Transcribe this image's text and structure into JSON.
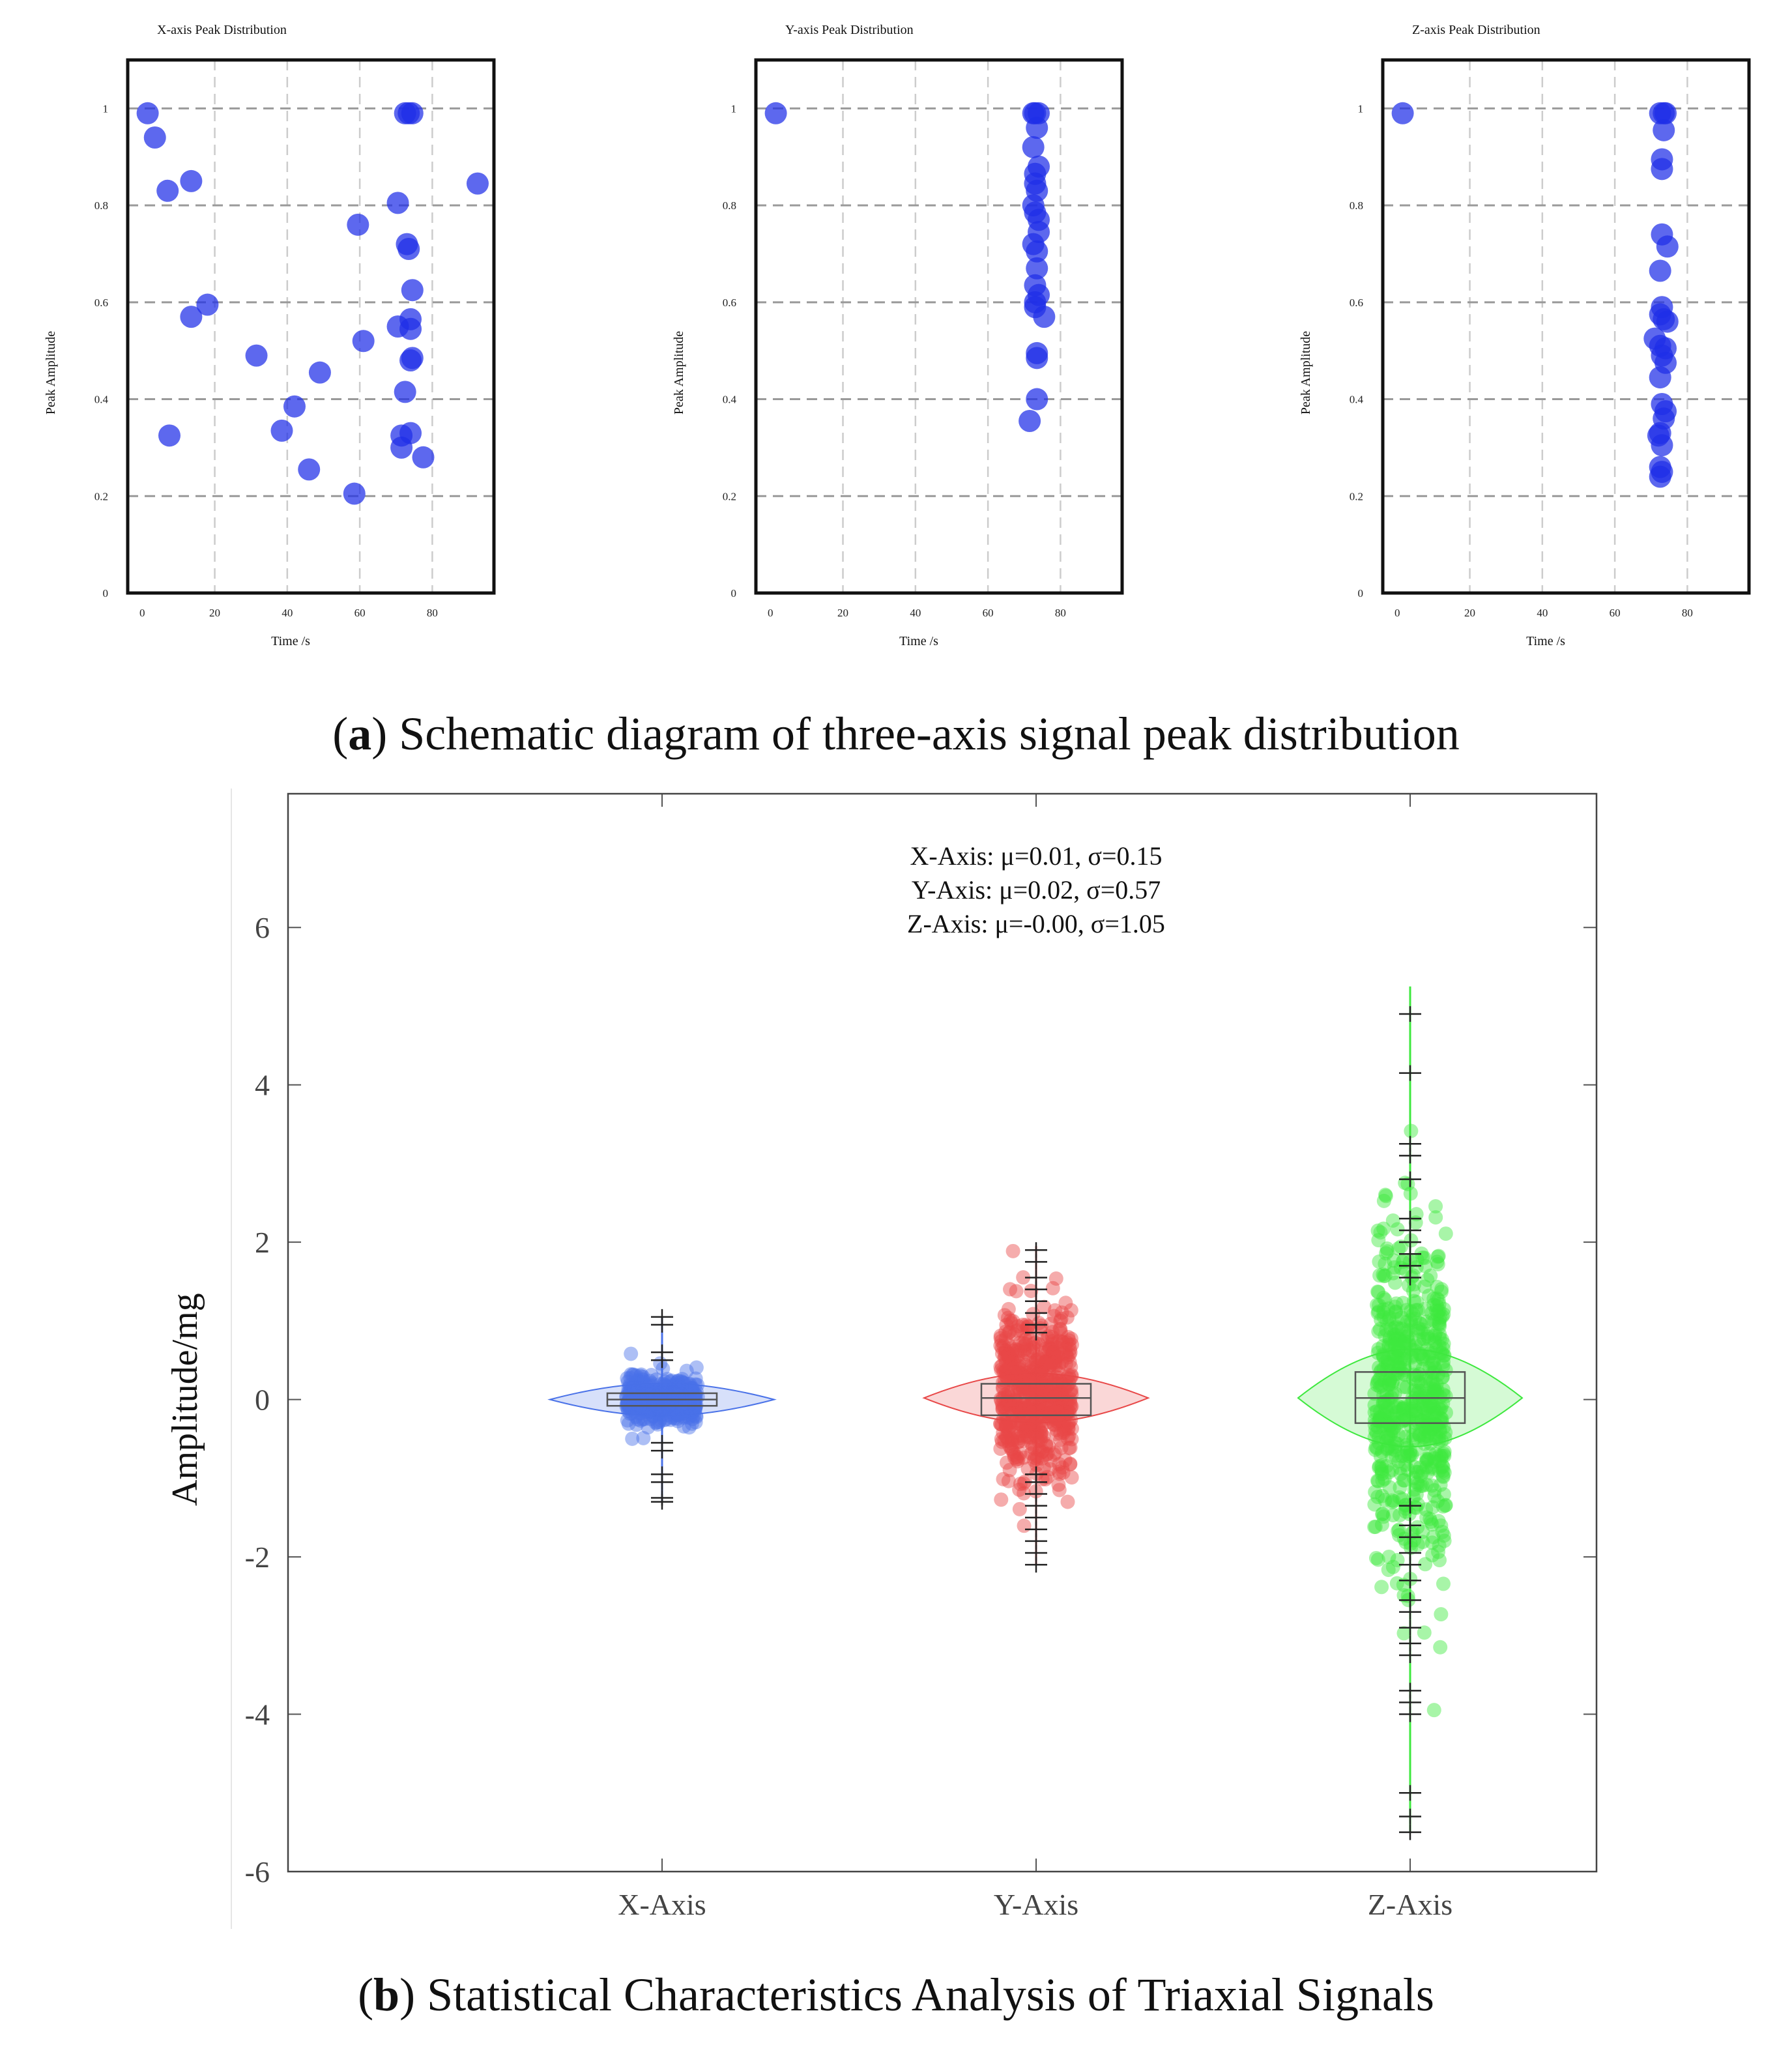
{
  "captions": {
    "a_label": "a",
    "a_text": "Schematic diagram of three-axis signal peak distribution",
    "b_label": "b",
    "b_text": "Statistical Characteristics Analysis of Triaxial Signals"
  },
  "colors": {
    "peak_point": "#1f2ee8",
    "x_axis": "#4a72e8",
    "y_axis": "#e84848",
    "z_axis": "#3ee83e",
    "grid": "#cccccc"
  },
  "chart_data": [
    {
      "type": "scatter",
      "title": "X-axis Peak Distribution",
      "xlabel": "Time /s",
      "ylabel": "Peak Amplitude",
      "xlim": [
        -4,
        97
      ],
      "ylim": [
        0,
        1.1
      ],
      "xticks": [
        0,
        20,
        40,
        60,
        80
      ],
      "yticks": [
        0,
        0.2,
        0.4,
        0.6,
        0.8,
        1
      ],
      "grid": true,
      "points": [
        {
          "x": 1.5,
          "y": 0.99
        },
        {
          "x": 3.5,
          "y": 0.94
        },
        {
          "x": 7.0,
          "y": 0.83
        },
        {
          "x": 13.5,
          "y": 0.85
        },
        {
          "x": 7.5,
          "y": 0.325
        },
        {
          "x": 13.5,
          "y": 0.57
        },
        {
          "x": 18.0,
          "y": 0.595
        },
        {
          "x": 31.5,
          "y": 0.49
        },
        {
          "x": 38.5,
          "y": 0.335
        },
        {
          "x": 42.0,
          "y": 0.385
        },
        {
          "x": 46.0,
          "y": 0.255
        },
        {
          "x": 49.0,
          "y": 0.455
        },
        {
          "x": 58.5,
          "y": 0.205
        },
        {
          "x": 59.5,
          "y": 0.76
        },
        {
          "x": 61.0,
          "y": 0.52
        },
        {
          "x": 70.5,
          "y": 0.805
        },
        {
          "x": 70.5,
          "y": 0.55
        },
        {
          "x": 71.5,
          "y": 0.325
        },
        {
          "x": 71.5,
          "y": 0.3
        },
        {
          "x": 72.5,
          "y": 0.415
        },
        {
          "x": 73.0,
          "y": 0.72
        },
        {
          "x": 73.5,
          "y": 0.71
        },
        {
          "x": 74.0,
          "y": 0.565
        },
        {
          "x": 74.5,
          "y": 0.625
        },
        {
          "x": 74.0,
          "y": 0.545
        },
        {
          "x": 74.5,
          "y": 0.485
        },
        {
          "x": 74.0,
          "y": 0.48
        },
        {
          "x": 74.0,
          "y": 0.33
        },
        {
          "x": 77.5,
          "y": 0.28
        },
        {
          "x": 92.5,
          "y": 0.845
        },
        {
          "x": 72.5,
          "y": 0.99
        },
        {
          "x": 73.5,
          "y": 0.99
        },
        {
          "x": 74.5,
          "y": 0.99
        }
      ]
    },
    {
      "type": "scatter",
      "title": "Y-axis Peak Distribution",
      "xlabel": "Time /s",
      "ylabel": "Peak Amplitude",
      "xlim": [
        -4,
        97
      ],
      "ylim": [
        0,
        1.1
      ],
      "xticks": [
        0,
        20,
        40,
        60,
        80
      ],
      "yticks": [
        0,
        0.2,
        0.4,
        0.6,
        0.8,
        1
      ],
      "grid": true,
      "points": [
        {
          "x": 1.5,
          "y": 0.99
        },
        {
          "x": 73.0,
          "y": 0.99
        },
        {
          "x": 74.0,
          "y": 0.99
        },
        {
          "x": 72.5,
          "y": 0.99
        },
        {
          "x": 73.5,
          "y": 0.96
        },
        {
          "x": 72.5,
          "y": 0.92
        },
        {
          "x": 74.0,
          "y": 0.88
        },
        {
          "x": 73.0,
          "y": 0.865
        },
        {
          "x": 73.0,
          "y": 0.845
        },
        {
          "x": 73.5,
          "y": 0.83
        },
        {
          "x": 72.5,
          "y": 0.8
        },
        {
          "x": 73.0,
          "y": 0.785
        },
        {
          "x": 74.0,
          "y": 0.77
        },
        {
          "x": 74.0,
          "y": 0.745
        },
        {
          "x": 72.5,
          "y": 0.72
        },
        {
          "x": 73.5,
          "y": 0.705
        },
        {
          "x": 73.5,
          "y": 0.67
        },
        {
          "x": 73.0,
          "y": 0.635
        },
        {
          "x": 74.0,
          "y": 0.615
        },
        {
          "x": 73.0,
          "y": 0.6
        },
        {
          "x": 73.0,
          "y": 0.59
        },
        {
          "x": 75.5,
          "y": 0.57
        },
        {
          "x": 73.5,
          "y": 0.495
        },
        {
          "x": 73.5,
          "y": 0.485
        },
        {
          "x": 73.5,
          "y": 0.4
        },
        {
          "x": 71.5,
          "y": 0.355
        }
      ]
    },
    {
      "type": "scatter",
      "title": "Z-axis Peak Distribution",
      "xlabel": "Time /s",
      "ylabel": "Peak Amplitude",
      "xlim": [
        -4,
        97
      ],
      "ylim": [
        0,
        1.1
      ],
      "xticks": [
        0,
        20,
        40,
        60,
        80
      ],
      "yticks": [
        0,
        0.2,
        0.4,
        0.6,
        0.8,
        1
      ],
      "grid": true,
      "points": [
        {
          "x": 1.5,
          "y": 0.99
        },
        {
          "x": 72.5,
          "y": 0.99
        },
        {
          "x": 73.5,
          "y": 0.99
        },
        {
          "x": 74.0,
          "y": 0.99
        },
        {
          "x": 73.5,
          "y": 0.955
        },
        {
          "x": 73.0,
          "y": 0.895
        },
        {
          "x": 73.0,
          "y": 0.875
        },
        {
          "x": 73.0,
          "y": 0.74
        },
        {
          "x": 74.5,
          "y": 0.715
        },
        {
          "x": 72.5,
          "y": 0.665
        },
        {
          "x": 73.0,
          "y": 0.59
        },
        {
          "x": 72.5,
          "y": 0.575
        },
        {
          "x": 73.5,
          "y": 0.565
        },
        {
          "x": 74.5,
          "y": 0.56
        },
        {
          "x": 71.0,
          "y": 0.525
        },
        {
          "x": 72.5,
          "y": 0.51
        },
        {
          "x": 74.0,
          "y": 0.505
        },
        {
          "x": 73.0,
          "y": 0.49
        },
        {
          "x": 74.0,
          "y": 0.475
        },
        {
          "x": 72.5,
          "y": 0.445
        },
        {
          "x": 73.0,
          "y": 0.39
        },
        {
          "x": 74.0,
          "y": 0.375
        },
        {
          "x": 73.5,
          "y": 0.36
        },
        {
          "x": 72.5,
          "y": 0.33
        },
        {
          "x": 72.0,
          "y": 0.325
        },
        {
          "x": 73.0,
          "y": 0.305
        },
        {
          "x": 72.5,
          "y": 0.26
        },
        {
          "x": 73.0,
          "y": 0.25
        },
        {
          "x": 72.5,
          "y": 0.24
        }
      ]
    },
    {
      "type": "violin",
      "title": "",
      "xlabel": "",
      "ylabel": "Amplitude/mg",
      "ylim": [
        -6,
        7.7
      ],
      "yticks": [
        -6,
        -4,
        -2,
        0,
        2,
        4,
        6
      ],
      "grid": false,
      "categories": [
        "X-Axis",
        "Y-Axis",
        "Z-Axis"
      ],
      "annotations": [
        "X-Axis: μ=0.01, σ=0.15",
        "Y-Axis: μ=0.02, σ=0.57",
        "Z-Axis: μ=-0.00, σ=1.05"
      ],
      "series": [
        {
          "name": "X-Axis",
          "mean": 0.01,
          "std": 0.15,
          "min": -1.3,
          "max": 1.05,
          "q1": -0.08,
          "q3": 0.08,
          "median": 0.0,
          "outliers": [
            1.05,
            0.95,
            0.6,
            0.5,
            -0.55,
            -0.65,
            -0.95,
            -1.05,
            -1.25,
            -1.3
          ]
        },
        {
          "name": "Y-Axis",
          "mean": 0.02,
          "std": 0.57,
          "min": -2.1,
          "max": 1.95,
          "q1": -0.2,
          "q3": 0.2,
          "median": 0.02,
          "outliers": [
            1.9,
            1.75,
            1.55,
            1.4,
            1.25,
            1.1,
            0.95,
            0.85,
            -0.95,
            -1.05,
            -1.2,
            -1.35,
            -1.5,
            -1.65,
            -1.8,
            -1.95,
            -2.1
          ]
        },
        {
          "name": "Z-Axis",
          "mean": 0.0,
          "std": 1.05,
          "min": -5.5,
          "max": 5.25,
          "q1": -0.3,
          "q3": 0.35,
          "median": 0.02,
          "outliers": [
            4.9,
            4.15,
            3.25,
            3.1,
            2.8,
            2.3,
            2.15,
            2.0,
            1.85,
            1.7,
            1.55,
            -1.35,
            -1.6,
            -1.75,
            -1.95,
            -2.1,
            -2.3,
            -2.55,
            -2.7,
            -2.9,
            -3.1,
            -3.25,
            -3.7,
            -3.85,
            -4.0,
            -5.0,
            -5.3,
            -5.5
          ]
        }
      ]
    }
  ]
}
